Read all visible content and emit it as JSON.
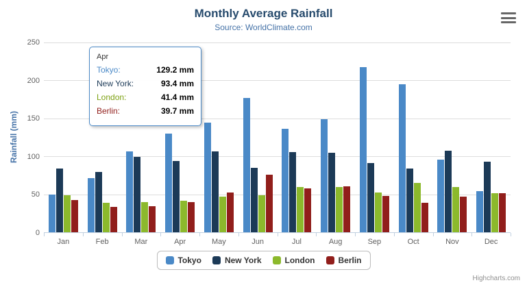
{
  "title": "Monthly Average Rainfall",
  "subtitle": "Source: WorldClimate.com",
  "credits": "Highcharts.com",
  "chart_data": {
    "type": "bar",
    "title": "Monthly Average Rainfall",
    "subtitle": "Source: WorldClimate.com",
    "categories": [
      "Jan",
      "Feb",
      "Mar",
      "Apr",
      "May",
      "Jun",
      "Jul",
      "Aug",
      "Sep",
      "Oct",
      "Nov",
      "Dec"
    ],
    "series": [
      {
        "name": "Tokyo",
        "color": "#4A89C7",
        "values": [
          49.9,
          71.5,
          106.4,
          129.2,
          144.0,
          176.0,
          135.6,
          148.5,
          216.4,
          194.1,
          95.6,
          54.4
        ]
      },
      {
        "name": "New York",
        "color": "#1C3A57",
        "values": [
          83.6,
          78.8,
          98.5,
          93.4,
          106.0,
          84.5,
          105.0,
          104.3,
          91.2,
          83.5,
          106.6,
          92.3
        ]
      },
      {
        "name": "London",
        "color": "#8CB92C",
        "values": [
          48.9,
          38.8,
          39.3,
          41.4,
          47.0,
          48.3,
          59.0,
          59.6,
          52.4,
          65.2,
          59.3,
          51.2
        ]
      },
      {
        "name": "Berlin",
        "color": "#911E1B",
        "values": [
          42.4,
          33.2,
          34.5,
          39.7,
          52.6,
          75.5,
          57.4,
          60.4,
          47.6,
          39.1,
          46.8,
          51.1
        ]
      }
    ],
    "xlabel": "",
    "ylabel": "Rainfall (mm)",
    "ylim": [
      0,
      250
    ],
    "yticks": [
      0,
      50,
      100,
      150,
      200,
      250
    ],
    "grid": true,
    "legend_position": "bottom"
  },
  "tooltip": {
    "category": "Apr",
    "rows": [
      {
        "name": "Tokyo:",
        "value": "129.2 mm",
        "color": "#4A89C7"
      },
      {
        "name": "New York:",
        "value": "93.4 mm",
        "color": "#1C3A57"
      },
      {
        "name": "London:",
        "value": "41.4 mm",
        "color": "#7DA112"
      },
      {
        "name": "Berlin:",
        "value": "39.7 mm",
        "color": "#911E1B"
      }
    ]
  },
  "legend": [
    {
      "label": "Tokyo",
      "color": "#4A89C7"
    },
    {
      "label": "New York",
      "color": "#1C3A57"
    },
    {
      "label": "London",
      "color": "#8CB92C"
    },
    {
      "label": "Berlin",
      "color": "#911E1B"
    }
  ]
}
